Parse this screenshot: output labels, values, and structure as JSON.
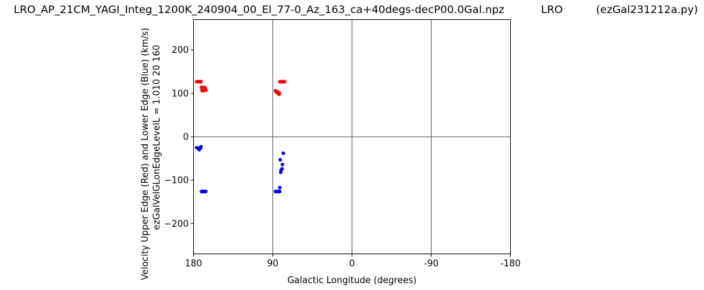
{
  "header": {
    "filename": "LRO_AP_21CM_YAGI_Integ_1200K_240904_00_El_77-0_Az_163_ca+40degs-decP00.0Gal.npz",
    "site": "LRO",
    "program": "(ezGal231212a.py)"
  },
  "chart_data": {
    "type": "scatter",
    "title": "",
    "xlabel": "Galactic Longitude (degrees)",
    "ylabel": "Velocity Upper Edge (Red) and Lower Edge (Blue)  (km/s)",
    "ylabel2": "ezGalVelGLonEdgeLevelL = 1.010  20  160",
    "xlim": [
      180,
      -180
    ],
    "ylim": [
      -270,
      270
    ],
    "xticks": [
      180,
      90,
      0,
      -90,
      -180
    ],
    "xtick_labels": [
      "180",
      "90",
      "0",
      "-90",
      "-180"
    ],
    "yticks": [
      200,
      100,
      0,
      -100,
      -200
    ],
    "ytick_labels": [
      "200",
      "100",
      "0",
      "−100",
      "−200"
    ],
    "grid": "lines at x = 90, 0, -90 and y = 0",
    "colors": {
      "upper": "#ff0000",
      "lower": "#0000ff",
      "axes": "#000000",
      "grid": "#555555"
    },
    "series": [
      {
        "key": "upper",
        "points": [
          [
            176.5,
            127
          ],
          [
            175.5,
            127
          ],
          [
            174.5,
            127
          ],
          [
            173.5,
            127
          ],
          [
            172.5,
            127
          ],
          [
            171.5,
            127
          ],
          [
            171,
            114
          ],
          [
            170.5,
            107
          ],
          [
            169.5,
            106
          ],
          [
            168.5,
            107
          ],
          [
            167.5,
            114
          ],
          [
            166.5,
            110
          ],
          [
            166,
            107
          ],
          [
            87,
            106
          ],
          [
            86,
            103
          ],
          [
            85.5,
            105
          ],
          [
            85,
            101
          ],
          [
            84,
            103
          ],
          [
            83.5,
            100
          ],
          [
            83,
            98
          ],
          [
            82.5,
            100
          ],
          [
            82,
            127
          ],
          [
            81,
            127
          ],
          [
            80,
            127
          ],
          [
            79,
            127
          ],
          [
            78,
            127
          ],
          [
            77,
            127
          ],
          [
            76.5,
            127
          ]
        ]
      },
      {
        "key": "lower",
        "points": [
          [
            176.5,
            -25
          ],
          [
            175.5,
            -26
          ],
          [
            174,
            -28
          ],
          [
            173.5,
            -30
          ],
          [
            172.5,
            -27
          ],
          [
            172,
            -25
          ],
          [
            171.5,
            -23
          ],
          [
            171,
            -126
          ],
          [
            170,
            -126
          ],
          [
            169,
            -126
          ],
          [
            168,
            -126
          ],
          [
            167,
            -126
          ],
          [
            166,
            -126
          ],
          [
            87,
            -126
          ],
          [
            86,
            -126
          ],
          [
            85,
            -126
          ],
          [
            84,
            -126
          ],
          [
            83,
            -126
          ],
          [
            82,
            -126
          ],
          [
            82,
            -117
          ],
          [
            81.5,
            -53
          ],
          [
            81,
            -82
          ],
          [
            80.5,
            -77
          ],
          [
            79.5,
            -74
          ],
          [
            79,
            -64
          ],
          [
            78,
            -38
          ]
        ]
      }
    ]
  }
}
